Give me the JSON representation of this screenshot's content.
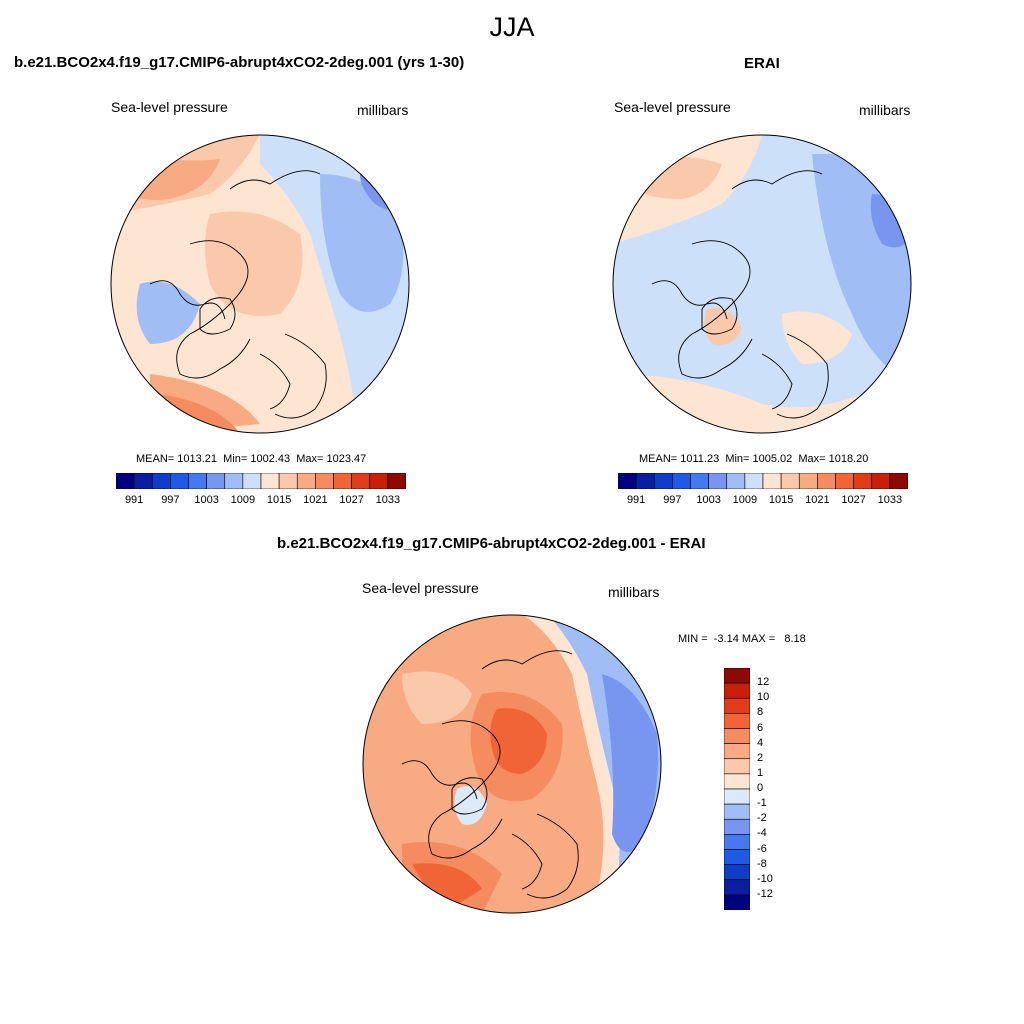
{
  "figure_title": "JJA",
  "panels": [
    {
      "title": "b.e21.BCO2x4.f19_g17.CMIP6-abrupt4xCO2-2deg.001 (yrs 1-30)",
      "variable": "Sea-level pressure",
      "units": "millibars",
      "stats_text": "MEAN= 1013.21  Min= 1002.43  Max= 1023.47",
      "stats": {
        "mean": 1013.21,
        "min": 1002.43,
        "max": 1023.47
      }
    },
    {
      "title": "ERAI",
      "variable": "Sea-level pressure",
      "units": "millibars",
      "stats_text": "MEAN= 1011.23  Min= 1005.02  Max= 1018.20",
      "stats": {
        "mean": 1011.23,
        "min": 1005.02,
        "max": 1018.2
      }
    },
    {
      "title": "b.e21.BCO2x4.f19_g17.CMIP6-abrupt4xCO2-2deg.001 - ERAI",
      "variable": "Sea-level pressure",
      "units": "millibars",
      "stats_text": "MIN =  -3.14 MAX =   8.18",
      "stats": {
        "min": -3.14,
        "max": 8.18
      }
    }
  ],
  "colorbar_abs": {
    "colors": [
      "#00007f",
      "#0a1ea0",
      "#0f3cc8",
      "#1e5ae6",
      "#4678f0",
      "#7896f0",
      "#a0bef5",
      "#cde0fa",
      "#fde5d2",
      "#fac8aa",
      "#f8aa82",
      "#f58c5f",
      "#f06437",
      "#e13c19",
      "#c81e0a",
      "#8c0a00"
    ],
    "tick_labels": [
      "991",
      "997",
      "1003",
      "1009",
      "1015",
      "1021",
      "1027",
      "1033"
    ]
  },
  "colorbar_diff": {
    "colors": [
      "#00007f",
      "#0a1ea0",
      "#0f3cc8",
      "#1e5ae6",
      "#4678f0",
      "#7896f0",
      "#a0bef5",
      "#dce9fa",
      "#fde5d2",
      "#fac8aa",
      "#f8aa82",
      "#f58c5f",
      "#f06437",
      "#e13c19",
      "#c81e0a",
      "#8c0a00"
    ],
    "tick_labels": [
      "12",
      "10",
      "8",
      "6",
      "4",
      "2",
      "1",
      "0",
      "-1",
      "-2",
      "-4",
      "-6",
      "-8",
      "-10",
      "-12"
    ]
  }
}
